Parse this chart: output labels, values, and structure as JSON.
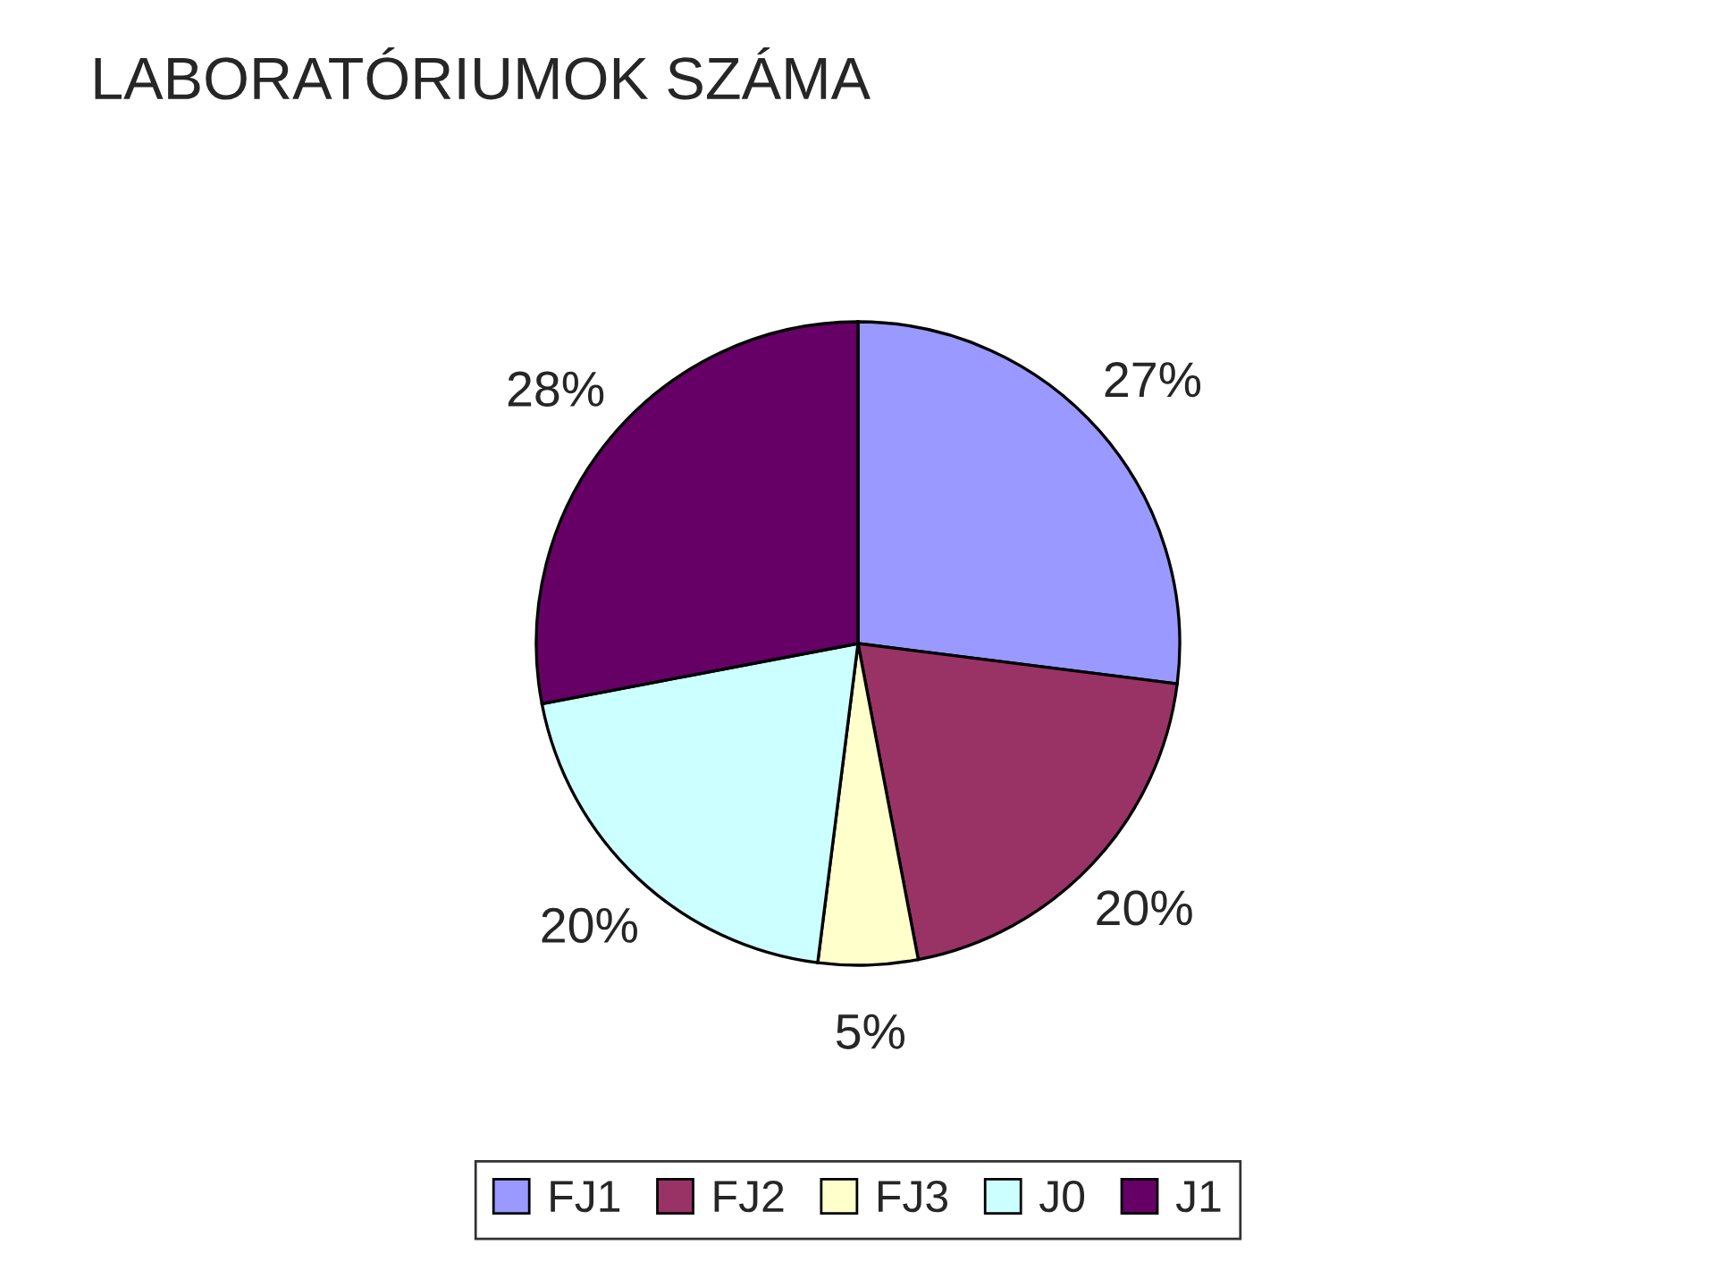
{
  "chart_data": {
    "type": "pie",
    "title": "LABORATÓRIUMOK SZÁMA",
    "categories": [
      "FJ1",
      "FJ2",
      "FJ3",
      "J0",
      "J1"
    ],
    "values": [
      27,
      20,
      5,
      20,
      28
    ],
    "colors": [
      "#9999ff",
      "#993366",
      "#ffffcc",
      "#ccffff",
      "#660066"
    ],
    "value_labels": [
      "27%",
      "20%",
      "5%",
      "20%",
      "28%"
    ],
    "legend": "bottom"
  }
}
